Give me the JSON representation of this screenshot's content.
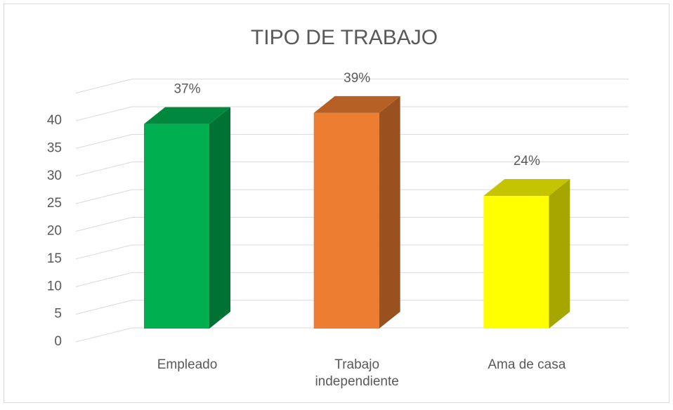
{
  "chart_data": {
    "type": "bar3d",
    "title": "TIPO DE TRABAJO",
    "categories": [
      "Empleado",
      "Trabajo independiente",
      "Ama de casa"
    ],
    "values": [
      37,
      39,
      24
    ],
    "value_labels": [
      "37%",
      "39%",
      "24%"
    ],
    "colors": [
      "#00b050",
      "#ed7d31",
      "#ffff00"
    ],
    "ylim": [
      0,
      45
    ],
    "yticks": [
      0,
      5,
      10,
      15,
      20,
      25,
      30,
      35,
      40
    ],
    "grid": true
  }
}
